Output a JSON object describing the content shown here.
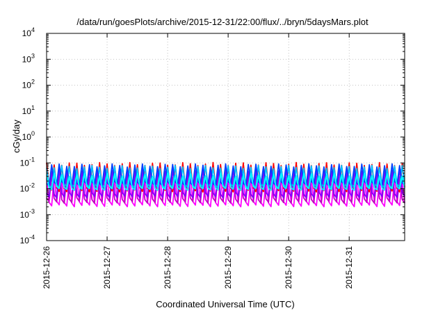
{
  "chart_data": {
    "type": "line",
    "title": "/data/run/goesPlots/archive/2015-12-31/22:00/flux/../bryn/5daysMars.plot",
    "xlabel": "Coordinated Universal Time (UTC)",
    "ylabel": "cGy/day",
    "yscale": "log",
    "ylim": [
      0.0001,
      10000
    ],
    "xlim": [
      "2015-12-26 00:00",
      "2015-12-31 22:00"
    ],
    "grid": true,
    "x_ticks": [
      "2015-12-26",
      "2015-12-27",
      "2015-12-28",
      "2015-12-29",
      "2015-12-30",
      "2015-12-31"
    ],
    "y_ticks": [
      {
        "base": "10",
        "exp": "-4"
      },
      {
        "base": "10",
        "exp": "-3"
      },
      {
        "base": "10",
        "exp": "-2"
      },
      {
        "base": "10",
        "exp": "-1"
      },
      {
        "base": "10",
        "exp": "0"
      },
      {
        "base": "10",
        "exp": "1"
      },
      {
        "base": "10",
        "exp": "2"
      },
      {
        "base": "10",
        "exp": "3"
      },
      {
        "base": "10",
        "exp": "4"
      }
    ],
    "sawtooth_period_hours": 3,
    "series": [
      {
        "color": "#ff00ff",
        "peak": 0.025,
        "trough": 0.0016
      },
      {
        "color": "#c000c0",
        "peak": 0.032,
        "trough": 0.0022
      },
      {
        "color": "#ff0000",
        "peak": 0.09,
        "trough": 0.006
      },
      {
        "color": "#8000ff",
        "peak": 0.055,
        "trough": 0.0035
      },
      {
        "color": "#00bfff",
        "peak": 0.07,
        "trough": 0.009
      },
      {
        "color": "#0040ff",
        "peak": 0.08,
        "trough": 0.011
      },
      {
        "color": "#00ffff",
        "peak": 0.035,
        "trough": 0.008
      }
    ]
  }
}
